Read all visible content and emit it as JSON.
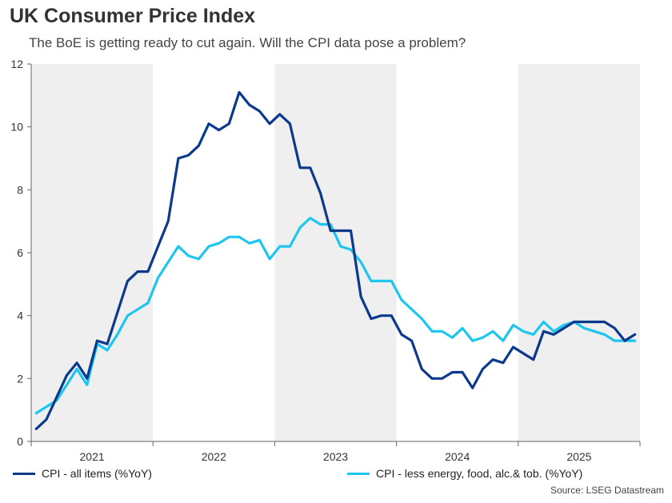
{
  "title": "UK Consumer Price Index",
  "subtitle": "The BoE is getting ready to cut again. Will the CPI data pose a problem?",
  "source": "Source: LSEG Datastream",
  "chart_data": {
    "type": "line",
    "ylim": [
      0,
      12
    ],
    "yticks": [
      "0",
      "2",
      "4",
      "6",
      "8",
      "10",
      "12"
    ],
    "year_labels": [
      "2021",
      "2022",
      "2023",
      "2024",
      "2025"
    ],
    "x_start": "2021-01",
    "x_end": "2025-12",
    "grid": false,
    "shaded_years": [
      "2021",
      "2023",
      "2025"
    ],
    "legend_position": "bottom",
    "series": [
      {
        "name": "CPI - all items (%YoY)",
        "color": "#0b3a8c",
        "values": [
          0.4,
          0.7,
          1.4,
          2.1,
          2.5,
          2.0,
          3.2,
          3.1,
          4.1,
          5.1,
          5.4,
          5.4,
          6.2,
          7.0,
          9.0,
          9.1,
          9.4,
          10.1,
          9.9,
          10.1,
          11.1,
          10.7,
          10.5,
          10.1,
          10.4,
          10.1,
          8.7,
          8.7,
          7.9,
          6.7,
          6.7,
          6.7,
          4.6,
          3.9,
          4.0,
          4.0,
          3.4,
          3.2,
          2.3,
          2.0,
          2.0,
          2.2,
          2.2,
          1.7,
          2.3,
          2.6,
          2.5,
          3.0,
          2.8,
          2.6,
          3.5,
          3.4,
          3.6,
          3.8,
          3.8,
          3.8,
          3.8,
          3.6,
          3.2,
          3.4
        ]
      },
      {
        "name": "CPI - less energy, food, alc.& tob. (%YoY)",
        "color": "#1ec6ef",
        "values": [
          0.9,
          1.1,
          1.3,
          1.8,
          2.3,
          1.8,
          3.1,
          2.9,
          3.4,
          4.0,
          4.2,
          4.4,
          5.2,
          5.7,
          6.2,
          5.9,
          5.8,
          6.2,
          6.3,
          6.5,
          6.5,
          6.3,
          6.4,
          5.8,
          6.2,
          6.2,
          6.8,
          7.1,
          6.9,
          6.9,
          6.2,
          6.1,
          5.7,
          5.1,
          5.1,
          5.1,
          4.5,
          4.2,
          3.9,
          3.5,
          3.5,
          3.3,
          3.6,
          3.2,
          3.3,
          3.5,
          3.2,
          3.7,
          3.5,
          3.4,
          3.8,
          3.5,
          3.7,
          3.8,
          3.6,
          3.5,
          3.4,
          3.2,
          3.2,
          3.2
        ]
      }
    ]
  }
}
